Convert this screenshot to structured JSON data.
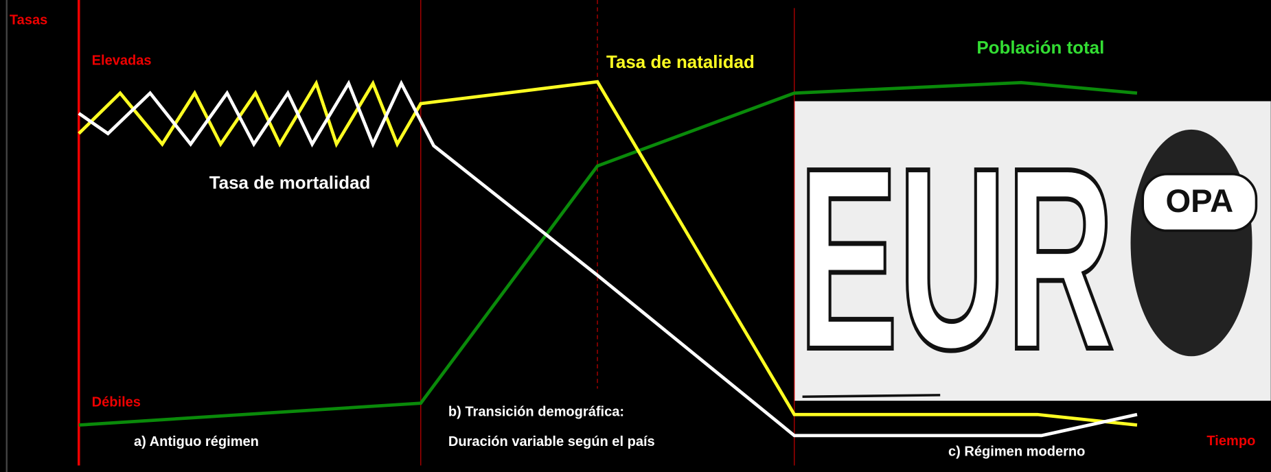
{
  "axis": {
    "y_title": "Tasas",
    "high": "Elevadas",
    "low": "Débiles",
    "x_title": "Tiempo"
  },
  "series_labels": {
    "birth": "Tasa de natalidad",
    "death": "Tasa de mortalidad",
    "population": "Población total"
  },
  "phases": {
    "a": "a) Antiguo régimen",
    "b_line1": "b) Transición demográfica:",
    "b_line2": "Duración variable según el país",
    "c": "c) Régimen moderno"
  },
  "cartoon": {
    "big_text": "EUR",
    "small_text": "OPA"
  }
}
